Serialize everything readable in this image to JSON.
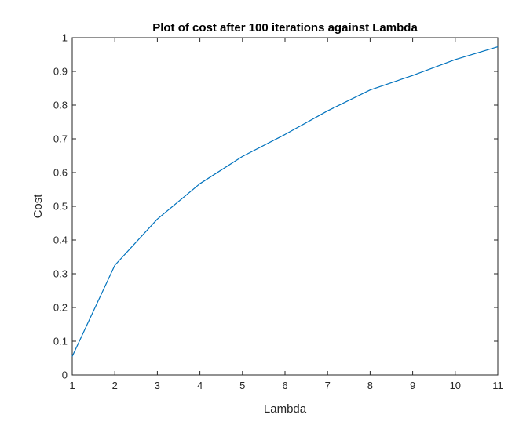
{
  "chart_data": {
    "type": "line",
    "title": "Plot of cost after 100 iterations against Lambda",
    "xlabel": "Lambda",
    "ylabel": "Cost",
    "xlim": [
      1,
      11
    ],
    "ylim": [
      0,
      1
    ],
    "x_ticks": [
      "1",
      "2",
      "3",
      "4",
      "5",
      "6",
      "7",
      "8",
      "9",
      "10",
      "11"
    ],
    "y_ticks": [
      "0",
      "0.1",
      "0.2",
      "0.3",
      "0.4",
      "0.5",
      "0.6",
      "0.7",
      "0.8",
      "0.9",
      "1"
    ],
    "grid": false,
    "series": [
      {
        "x": [
          1,
          2,
          3,
          4,
          5,
          6,
          7,
          8,
          9,
          10,
          11
        ],
        "y": [
          0.055,
          0.325,
          0.462,
          0.567,
          0.648,
          0.713,
          0.783,
          0.845,
          0.888,
          0.935,
          0.973
        ]
      }
    ],
    "colors": {
      "line": "#0072bd",
      "axes": "#262626"
    }
  }
}
